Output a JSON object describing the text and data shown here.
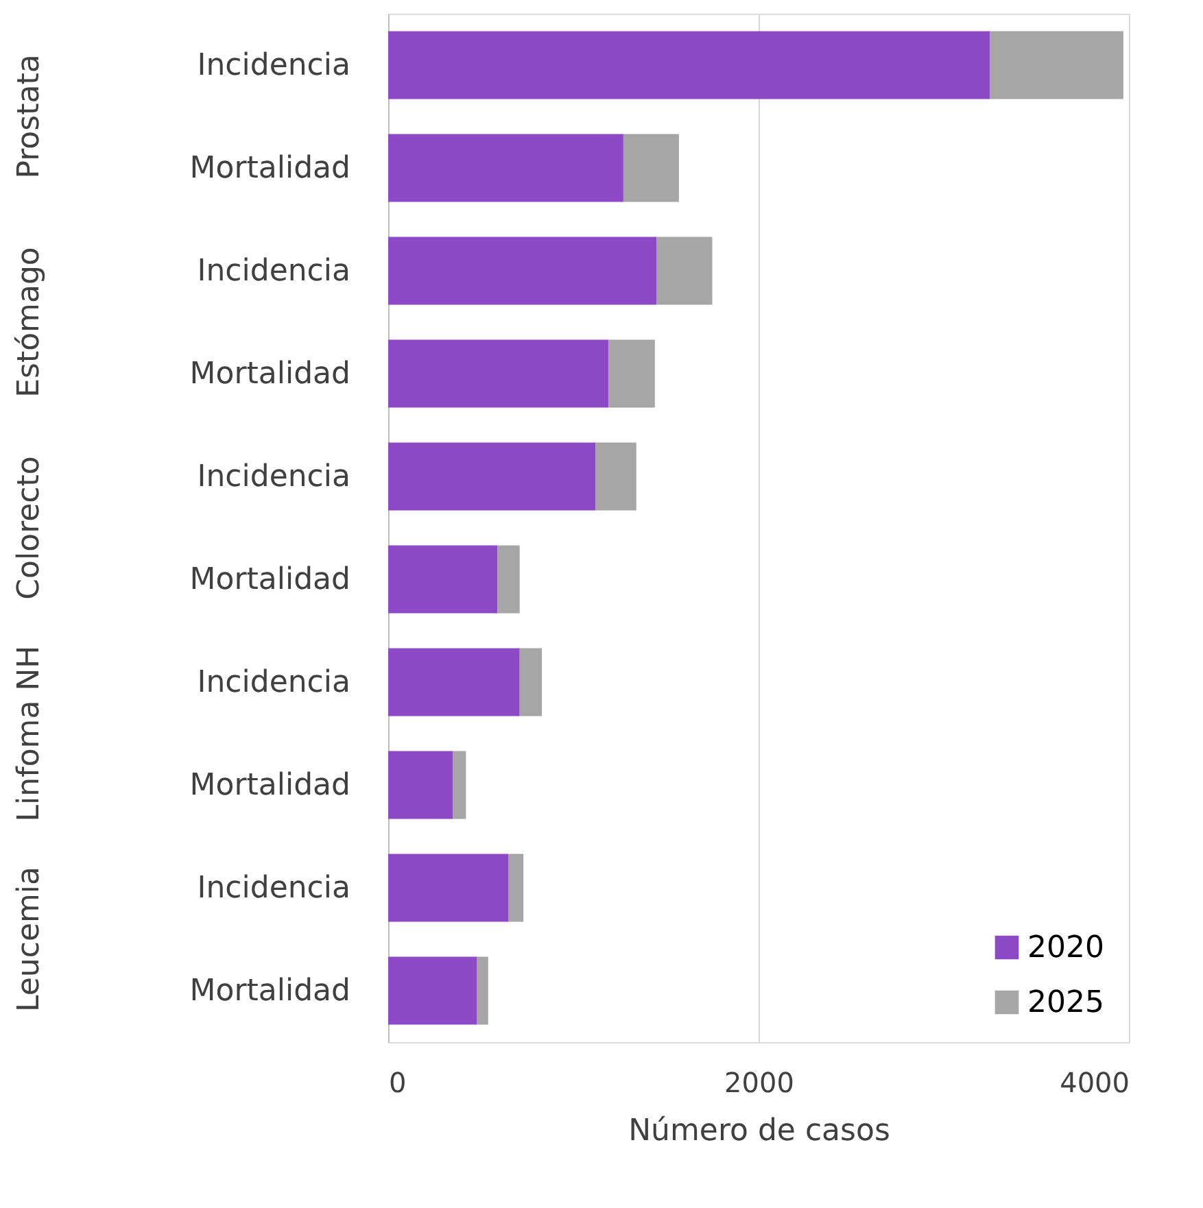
{
  "chart_data": {
    "type": "bar",
    "orientation": "horizontal",
    "stacked": true,
    "xlabel": "Número de casos",
    "categories": [
      "Incidencia",
      "Mortalidad",
      "Incidencia",
      "Mortalidad",
      "Incidencia",
      "Mortalidad",
      "Incidencia",
      "Mortalidad",
      "Incidencia",
      "Mortalidad"
    ],
    "series": [
      {
        "name": "2020",
        "color": "#8e4ac6",
        "values": [
          3250,
          1270,
          1450,
          1190,
          1120,
          590,
          710,
          350,
          650,
          480
        ]
      },
      {
        "name": "2025",
        "color": "#a6a6a6",
        "values": [
          720,
          300,
          300,
          250,
          220,
          120,
          120,
          70,
          80,
          60
        ]
      }
    ],
    "annotations": [
      "Prostata",
      "Estómago",
      "Colorecto",
      "Linfoma NH",
      "Leucemia"
    ],
    "xlim": [
      0,
      4000
    ],
    "xticks": [
      0,
      {
        "value": 2000,
        "label": "2000"
      },
      {
        "value": 4000,
        "label": "4000"
      }
    ],
    "grid": "x",
    "legend": "bottom right"
  }
}
